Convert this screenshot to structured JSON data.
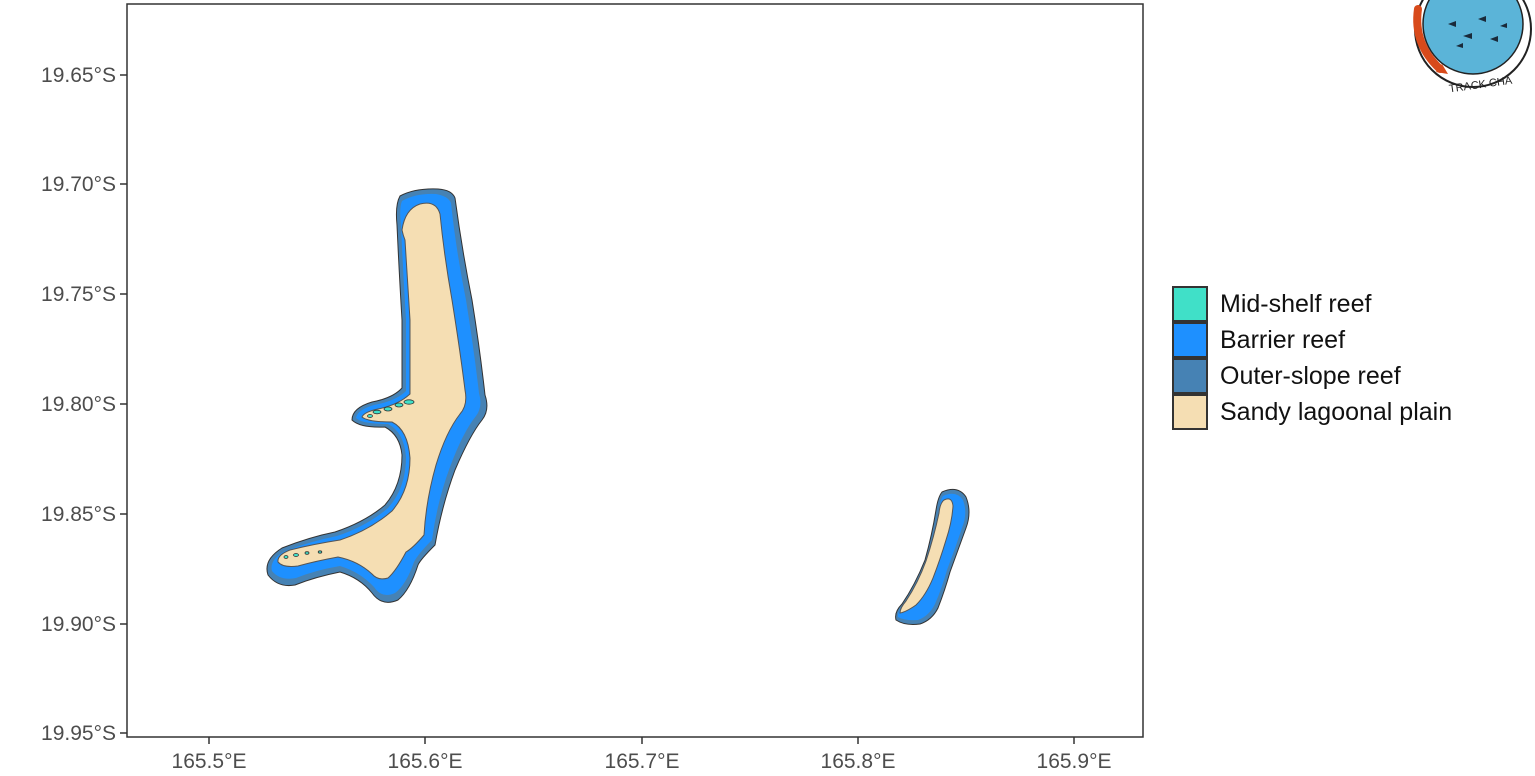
{
  "map": {
    "y_ticks": [
      "19.65°S",
      "19.70°S",
      "19.75°S",
      "19.80°S",
      "19.85°S",
      "19.90°S",
      "19.95°S"
    ],
    "x_ticks": [
      "165.5°E",
      "165.6°E",
      "165.7°E",
      "165.8°E",
      "165.9°E"
    ]
  },
  "legend": {
    "items": [
      {
        "label": "Mid-shelf reef",
        "color": "#40e0c8"
      },
      {
        "label": "Barrier reef",
        "color": "#1e90ff"
      },
      {
        "label": "Outer-slope reef",
        "color": "#4682b4"
      },
      {
        "label": "Sandy lagoonal plain",
        "color": "#f5deb3"
      }
    ]
  },
  "logo": {
    "text": "TRACK CHA",
    "icon": "fish-globe-logo-icon"
  },
  "colors": {
    "outer_slope": "#4682b4",
    "barrier": "#1e90ff",
    "sand": "#f5deb3",
    "midshelf": "#40e0c8"
  }
}
